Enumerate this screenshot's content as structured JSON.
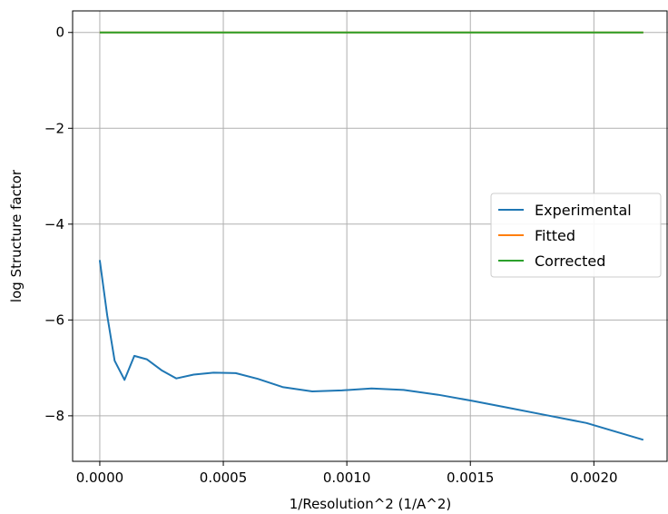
{
  "chart_data": {
    "type": "line",
    "xlabel": "1/Resolution^2 (1/A^2)",
    "ylabel": "log Structure factor",
    "xlim": [
      -0.00011,
      0.0023
    ],
    "ylim": [
      -8.95,
      0.45
    ],
    "x_ticks": [
      0.0,
      0.0005,
      0.001,
      0.0015,
      0.002
    ],
    "x_tick_labels": [
      "0.0000",
      "0.0005",
      "0.0010",
      "0.0015",
      "0.0020"
    ],
    "y_ticks": [
      0,
      -2,
      -4,
      -6,
      -8
    ],
    "y_tick_labels": [
      "0",
      "−2",
      "−4",
      "−6",
      "−8"
    ],
    "grid": true,
    "legend_position": "center-right",
    "series": [
      {
        "name": "Experimental",
        "color": "#1f77b4",
        "x": [
          0.0,
          3e-05,
          6e-05,
          0.0001,
          0.00014,
          0.00019,
          0.00025,
          0.00031,
          0.00038,
          0.00046,
          0.00055,
          0.00064,
          0.00074,
          0.00086,
          0.00098,
          0.0011,
          0.00123,
          0.00137,
          0.00151,
          0.00166,
          0.00181,
          0.00197,
          0.0022
        ],
        "y": [
          -4.75,
          -5.9,
          -6.85,
          -7.25,
          -6.75,
          -6.82,
          -7.05,
          -7.22,
          -7.14,
          -7.1,
          -7.11,
          -7.23,
          -7.4,
          -7.49,
          -7.47,
          -7.43,
          -7.46,
          -7.56,
          -7.69,
          -7.84,
          -7.99,
          -8.15,
          -8.5
        ]
      },
      {
        "name": "Fitted",
        "color": "#ff7f0e",
        "x": [
          0.0,
          0.0022
        ],
        "y": [
          0.0,
          0.0
        ]
      },
      {
        "name": "Corrected",
        "color": "#2ca02c",
        "x": [
          0.0,
          0.0022
        ],
        "y": [
          0.0,
          0.0
        ]
      }
    ]
  }
}
